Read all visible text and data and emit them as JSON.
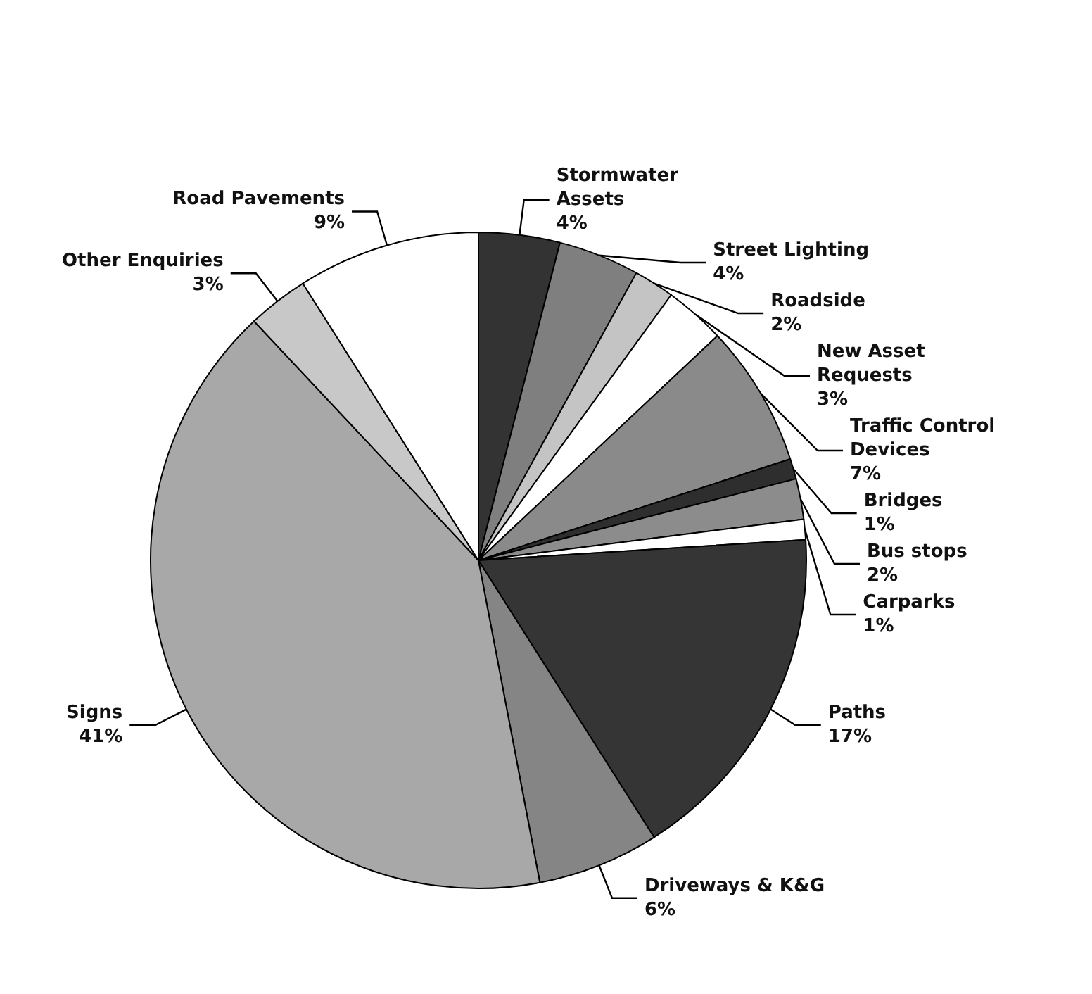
{
  "chart_data": {
    "type": "pie",
    "categories": [
      "Stormwater Assets",
      "Street Lighting",
      "Roadside",
      "New Asset Requests",
      "Traffic Control Devices",
      "Bridges",
      "Bus stops",
      "Carparks",
      "Paths",
      "Driveways & K&G",
      "Signs",
      "Other Enquiries",
      "Road Pavements"
    ],
    "values": [
      4,
      4,
      2,
      3,
      7,
      1,
      2,
      1,
      17,
      6,
      41,
      3,
      9
    ],
    "value_labels": [
      "4%",
      "4%",
      "2%",
      "3%",
      "7%",
      "1%",
      "2%",
      "1%",
      "17%",
      "6%",
      "41%",
      "3%",
      "9%"
    ],
    "colors": [
      "#333333",
      "#7f7f7f",
      "#c4c4c4",
      "#ffffff",
      "#8a8a8a",
      "#2e2e2e",
      "#8c8c8c",
      "#ffffff",
      "#353535",
      "#858585",
      "#a8a8a8",
      "#c8c8c8",
      "#ffffff"
    ]
  }
}
